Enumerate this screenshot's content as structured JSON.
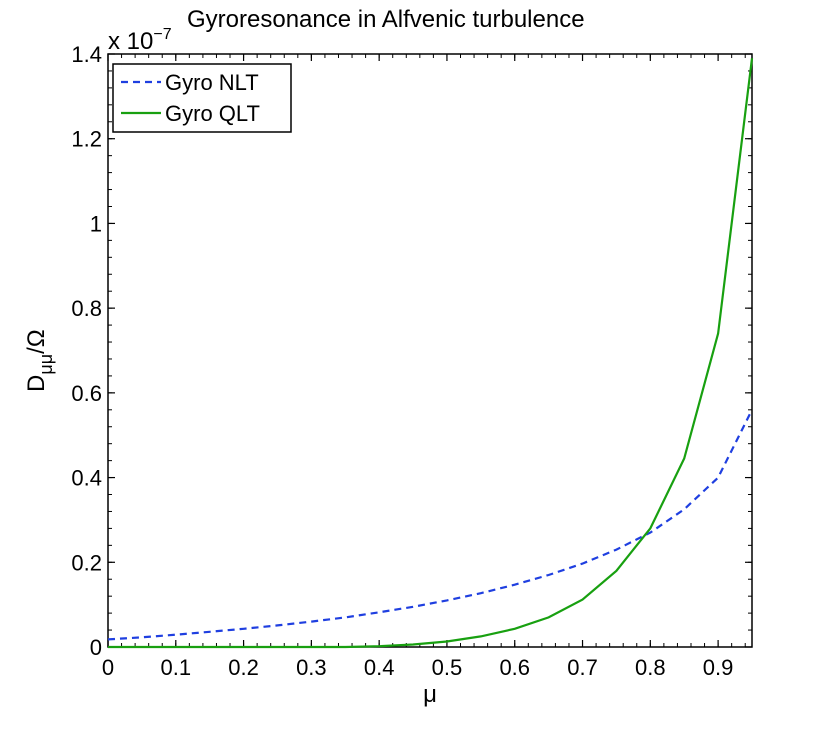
{
  "chart_data": {
    "type": "line",
    "title": "Gyroresonance in Alfvenic turbulence",
    "xlabel": "μ",
    "ylabel": {
      "main": "D",
      "sub": "μμ",
      "rest": "/Ω"
    },
    "exponent_label": {
      "base": "x 10",
      "power": "−7"
    },
    "xlim": [
      0,
      0.95
    ],
    "ylim": [
      0,
      1.4
    ],
    "xticks": [
      "0",
      "0.1",
      "0.2",
      "0.3",
      "0.4",
      "0.5",
      "0.6",
      "0.7",
      "0.8",
      "0.9"
    ],
    "yticks": [
      "0",
      "0.2",
      "0.4",
      "0.6",
      "0.8",
      "1",
      "1.2",
      "1.4"
    ],
    "legend_position": "top-left",
    "grid": false,
    "series": [
      {
        "name": "Gyro NLT",
        "color": "#1f3fe0",
        "style": "dashed",
        "x": [
          0,
          0.05,
          0.1,
          0.15,
          0.2,
          0.25,
          0.3,
          0.35,
          0.4,
          0.45,
          0.5,
          0.55,
          0.6,
          0.65,
          0.7,
          0.75,
          0.8,
          0.85,
          0.9,
          0.95
        ],
        "y": [
          0.018,
          0.023,
          0.029,
          0.036,
          0.043,
          0.051,
          0.06,
          0.07,
          0.082,
          0.095,
          0.11,
          0.127,
          0.147,
          0.17,
          0.197,
          0.23,
          0.27,
          0.325,
          0.4,
          0.56
        ]
      },
      {
        "name": "Gyro QLT",
        "color": "#18a010",
        "style": "solid",
        "x": [
          0,
          0.05,
          0.1,
          0.15,
          0.2,
          0.25,
          0.3,
          0.35,
          0.4,
          0.45,
          0.5,
          0.55,
          0.6,
          0.65,
          0.7,
          0.75,
          0.8,
          0.85,
          0.9,
          0.95
        ],
        "y": [
          0,
          0,
          0,
          0,
          0,
          0,
          0,
          0,
          0.002,
          0.006,
          0.013,
          0.025,
          0.043,
          0.07,
          0.112,
          0.18,
          0.28,
          0.445,
          0.74,
          1.39
        ]
      }
    ]
  }
}
